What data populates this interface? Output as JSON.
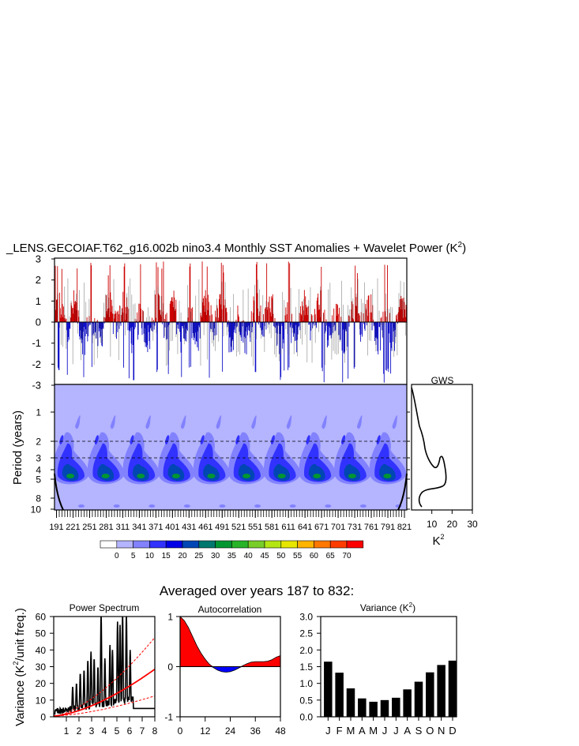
{
  "title": "_LENS.GECOIAF.T62_g16.002b nino3.4 Monthly SST Anomalies + Wavelet Power (K",
  "title_sup": "2",
  "title_close": ")",
  "colors": {
    "pos": "#ff0000",
    "neg": "#0000ff",
    "wavelet_bg": "#b4b4ff",
    "dark": "#000000"
  },
  "chart_data": [
    {
      "id": "anomaly",
      "type": "line",
      "title": "Monthly SST Anomalies",
      "ylim": [
        -3,
        3
      ],
      "yticks": [
        "3",
        "2",
        "1",
        "0",
        "-1",
        "-2",
        "-3"
      ],
      "xlim": [
        187,
        832
      ],
      "fill_positive": "red",
      "fill_negative": "blue",
      "note": "Monthly anomaly series, repeating ~60-year cycle; peaks near 2.9, troughs near -2.9"
    },
    {
      "id": "wavelet",
      "type": "heatmap",
      "ylabel": "Period (years)",
      "ytick_labels": [
        "1",
        "2",
        "3",
        "4",
        "5",
        "8",
        "10"
      ],
      "xtick_labels": [
        "191",
        "221",
        "251",
        "281",
        "311",
        "341",
        "371",
        "401",
        "431",
        "461",
        "491",
        "521",
        "551",
        "581",
        "611",
        "641",
        "671",
        "701",
        "731",
        "761",
        "791",
        "821"
      ],
      "dashed_periods": [
        2,
        3
      ],
      "colorbar_labels": [
        "0",
        "5",
        "10",
        "15",
        "20",
        "25",
        "30",
        "35",
        "40",
        "45",
        "50",
        "55",
        "60",
        "65",
        "70"
      ],
      "colorbar_colors": [
        "#ffffff",
        "#b4b4ff",
        "#8282ff",
        "#3232ff",
        "#0000e6",
        "#0046b4",
        "#00786e",
        "#009632",
        "#28b428",
        "#78cd28",
        "#b4e614",
        "#e6e600",
        "#ffb400",
        "#ff7800",
        "#ff3c00",
        "#ff0000"
      ]
    },
    {
      "id": "gws",
      "type": "line",
      "title": "GWS",
      "xlabel": "K",
      "xlabel_sup": "2",
      "xticks": [
        "10",
        "20",
        "30"
      ],
      "xlim": [
        0,
        30
      ],
      "note": "Global wavelet spectrum vs period; peaks ~15 at 4 yr and ~17 at 5.5 yr"
    },
    {
      "id": "power",
      "type": "line",
      "title": "Power Spectrum",
      "ylabel": "Variance (K",
      "ylabel_sup": "2",
      "ylabel_close": "/unit freq.)",
      "yticks": [
        "0",
        "10",
        "20",
        "30",
        "40",
        "50",
        "60"
      ],
      "xticks": [
        "1",
        "2",
        "3",
        "4",
        "5",
        "6",
        "7",
        "8"
      ],
      "ylim": [
        0,
        60
      ],
      "xlim": [
        0,
        8
      ],
      "red_curves": [
        {
          "name": "mean",
          "style": "solid",
          "at_x8": 28
        },
        {
          "name": "upper",
          "style": "dashed",
          "at_x8": 47
        },
        {
          "name": "lower",
          "style": "dashed",
          "at_x8": 12
        }
      ]
    },
    {
      "id": "autocorr",
      "type": "area",
      "title": "Autocorrelation",
      "yticks": [
        "1",
        "0",
        "-1"
      ],
      "xticks": [
        "0",
        "12",
        "24",
        "36",
        "48"
      ],
      "ylim": [
        -1,
        1
      ],
      "xlim": [
        0,
        48
      ],
      "x": [
        0,
        2,
        4,
        6,
        8,
        10,
        12,
        14,
        16,
        18,
        20,
        22,
        24,
        26,
        28,
        30,
        32,
        34,
        36,
        38,
        40,
        42,
        44,
        46,
        48
      ],
      "values": [
        1.0,
        0.92,
        0.78,
        0.6,
        0.42,
        0.27,
        0.15,
        0.05,
        -0.02,
        -0.07,
        -0.1,
        -0.11,
        -0.1,
        -0.07,
        -0.03,
        0.02,
        0.06,
        0.09,
        0.1,
        0.1,
        0.1,
        0.11,
        0.14,
        0.19,
        0.22
      ]
    },
    {
      "id": "variance",
      "type": "bar",
      "title": "Variance (K",
      "title_sup": "2",
      "title_close": ")",
      "categories": [
        "J",
        "F",
        "M",
        "A",
        "M",
        "J",
        "J",
        "A",
        "S",
        "O",
        "N",
        "D"
      ],
      "values": [
        1.65,
        1.32,
        0.85,
        0.55,
        0.45,
        0.5,
        0.57,
        0.82,
        1.05,
        1.33,
        1.55,
        1.68
      ],
      "yticks": [
        "0.0",
        "0.5",
        "1.0",
        "1.5",
        "2.0",
        "2.5",
        "3.0"
      ],
      "ylim": [
        0,
        3
      ]
    }
  ],
  "averaged_title": "Averaged over years 187 to 832:"
}
